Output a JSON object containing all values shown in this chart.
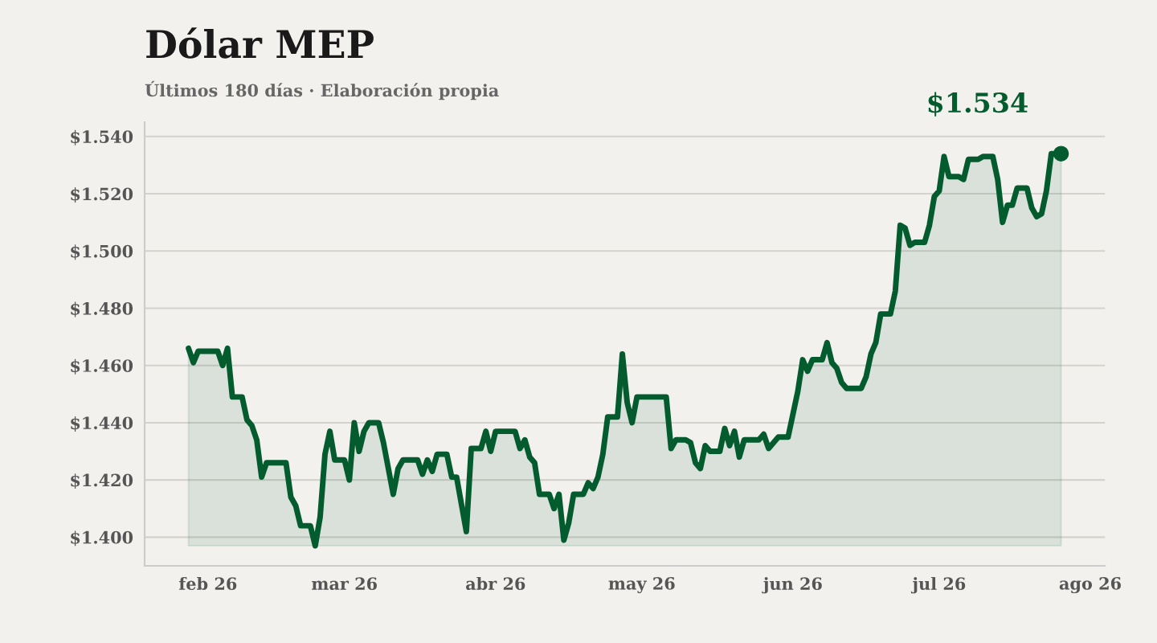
{
  "chart_data": {
    "type": "area",
    "title": "Dólar MEP",
    "subtitle": "Últimos 180 días · Elaboración propia",
    "x": [
      "2026-01-28",
      "2026-01-29",
      "2026-01-30",
      "2026-02-03",
      "2026-02-04",
      "2026-02-05",
      "2026-02-06",
      "2026-02-08",
      "2026-02-09",
      "2026-02-10",
      "2026-02-11",
      "2026-02-12",
      "2026-02-13",
      "2026-02-17",
      "2026-02-18",
      "2026-02-19",
      "2026-02-20",
      "2026-02-22",
      "2026-02-23",
      "2026-02-24",
      "2026-02-25",
      "2026-02-26",
      "2026-02-27",
      "2026-03-01",
      "2026-03-02",
      "2026-03-03",
      "2026-03-04",
      "2026-03-05",
      "2026-03-06",
      "2026-03-08",
      "2026-03-09",
      "2026-03-11",
      "2026-03-12",
      "2026-03-13",
      "2026-03-15",
      "2026-03-16",
      "2026-03-17",
      "2026-03-18",
      "2026-03-19",
      "2026-03-20",
      "2026-03-22",
      "2026-03-23",
      "2026-03-24",
      "2026-03-26",
      "2026-03-27",
      "2026-03-29",
      "2026-03-30",
      "2026-03-31",
      "2026-04-01",
      "2026-04-05",
      "2026-04-06",
      "2026-04-07",
      "2026-04-08",
      "2026-04-09",
      "2026-04-10",
      "2026-04-12",
      "2026-04-13",
      "2026-04-14",
      "2026-04-15",
      "2026-04-16",
      "2026-04-17",
      "2026-04-19",
      "2026-04-20",
      "2026-04-21",
      "2026-04-22",
      "2026-04-23",
      "2026-04-24",
      "2026-04-26",
      "2026-04-27",
      "2026-04-28",
      "2026-04-29",
      "2026-04-30",
      "2026-05-06",
      "2026-05-07",
      "2026-05-08",
      "2026-05-10",
      "2026-05-11",
      "2026-05-12",
      "2026-05-13",
      "2026-05-14",
      "2026-05-15",
      "2026-05-17",
      "2026-05-18",
      "2026-05-19",
      "2026-05-20",
      "2026-05-21",
      "2026-05-22",
      "2026-05-25",
      "2026-05-26",
      "2026-05-27",
      "2026-05-29",
      "2026-05-31",
      "2026-06-01",
      "2026-06-02",
      "2026-06-03",
      "2026-06-04",
      "2026-06-05",
      "2026-06-07",
      "2026-06-08",
      "2026-06-09",
      "2026-06-10",
      "2026-06-11",
      "2026-06-12",
      "2026-06-15",
      "2026-06-16",
      "2026-06-17",
      "2026-06-18",
      "2026-06-19",
      "2026-06-21",
      "2026-06-22",
      "2026-06-23",
      "2026-06-24",
      "2026-06-25",
      "2026-06-26",
      "2026-06-28",
      "2026-06-29",
      "2026-06-30",
      "2026-07-01",
      "2026-07-02",
      "2026-07-03",
      "2026-07-05",
      "2026-07-06",
      "2026-07-07",
      "2026-07-09",
      "2026-07-10",
      "2026-07-12",
      "2026-07-13",
      "2026-07-14",
      "2026-07-15",
      "2026-07-16",
      "2026-07-17",
      "2026-07-19",
      "2026-07-20",
      "2026-07-21",
      "2026-07-22",
      "2026-07-23",
      "2026-07-24",
      "2026-07-25",
      "2026-07-26"
    ],
    "series": [
      {
        "color": "#045c2e",
        "values": [
          1466,
          1461,
          1465,
          1465,
          1460,
          1466,
          1449,
          1449,
          1441,
          1439,
          1434,
          1421,
          1426,
          1426,
          1414,
          1411,
          1404,
          1404,
          1397,
          1407,
          1429,
          1437,
          1427,
          1427,
          1420,
          1440,
          1430,
          1437,
          1440,
          1440,
          1433,
          1415,
          1424,
          1427,
          1427,
          1427,
          1422,
          1427,
          1423,
          1429,
          1429,
          1421,
          1421,
          1402,
          1431,
          1431,
          1437,
          1430,
          1437,
          1437,
          1431,
          1434,
          1428,
          1426,
          1415,
          1415,
          1410,
          1415,
          1399,
          1405,
          1415,
          1415,
          1419,
          1417,
          1421,
          1429,
          1442,
          1442,
          1464,
          1447,
          1440,
          1449,
          1449,
          1431,
          1434,
          1434,
          1433,
          1426,
          1424,
          1432,
          1430,
          1430,
          1438,
          1432,
          1437,
          1428,
          1434,
          1434,
          1436,
          1431,
          1435,
          1435,
          1443,
          1451,
          1462,
          1458,
          1462,
          1462,
          1468,
          1461,
          1459,
          1454,
          1452,
          1452,
          1456,
          1464,
          1468,
          1478,
          1478,
          1486,
          1509,
          1508,
          1502,
          1503,
          1503,
          1509,
          1519,
          1521,
          1533,
          1526,
          1526,
          1525,
          1532,
          1532,
          1533,
          1533,
          1525,
          1510,
          1516,
          1516,
          1522,
          1522,
          1515,
          1512,
          1513,
          1521,
          1534,
          1534,
          1534
        ]
      }
    ],
    "xlim": [
      "2026-01-19",
      "2026-08-04"
    ],
    "xticks": [
      {
        "value": "2026-02-01",
        "label": "feb 26"
      },
      {
        "value": "2026-03-01",
        "label": "mar 26"
      },
      {
        "value": "2026-04-01",
        "label": "abr 26"
      },
      {
        "value": "2026-05-01",
        "label": "may 26"
      },
      {
        "value": "2026-06-01",
        "label": "jun 26"
      },
      {
        "value": "2026-07-01",
        "label": "jul 26"
      },
      {
        "value": "2026-08-01",
        "label": "ago 26"
      }
    ],
    "ylim": [
      1390,
      1545
    ],
    "yticks": [
      {
        "value": 1400,
        "label": "$1.400"
      },
      {
        "value": 1420,
        "label": "$1.420"
      },
      {
        "value": 1440,
        "label": "$1.440"
      },
      {
        "value": 1460,
        "label": "$1.460"
      },
      {
        "value": 1480,
        "label": "$1.480"
      },
      {
        "value": 1500,
        "label": "$1.500"
      },
      {
        "value": 1520,
        "label": "$1.520"
      },
      {
        "value": 1540,
        "label": "$1.540"
      }
    ],
    "grid": "y",
    "legend": false,
    "annotations": [
      {
        "text": "$1.534",
        "x": "2026-07-26",
        "y": 1534
      }
    ]
  }
}
